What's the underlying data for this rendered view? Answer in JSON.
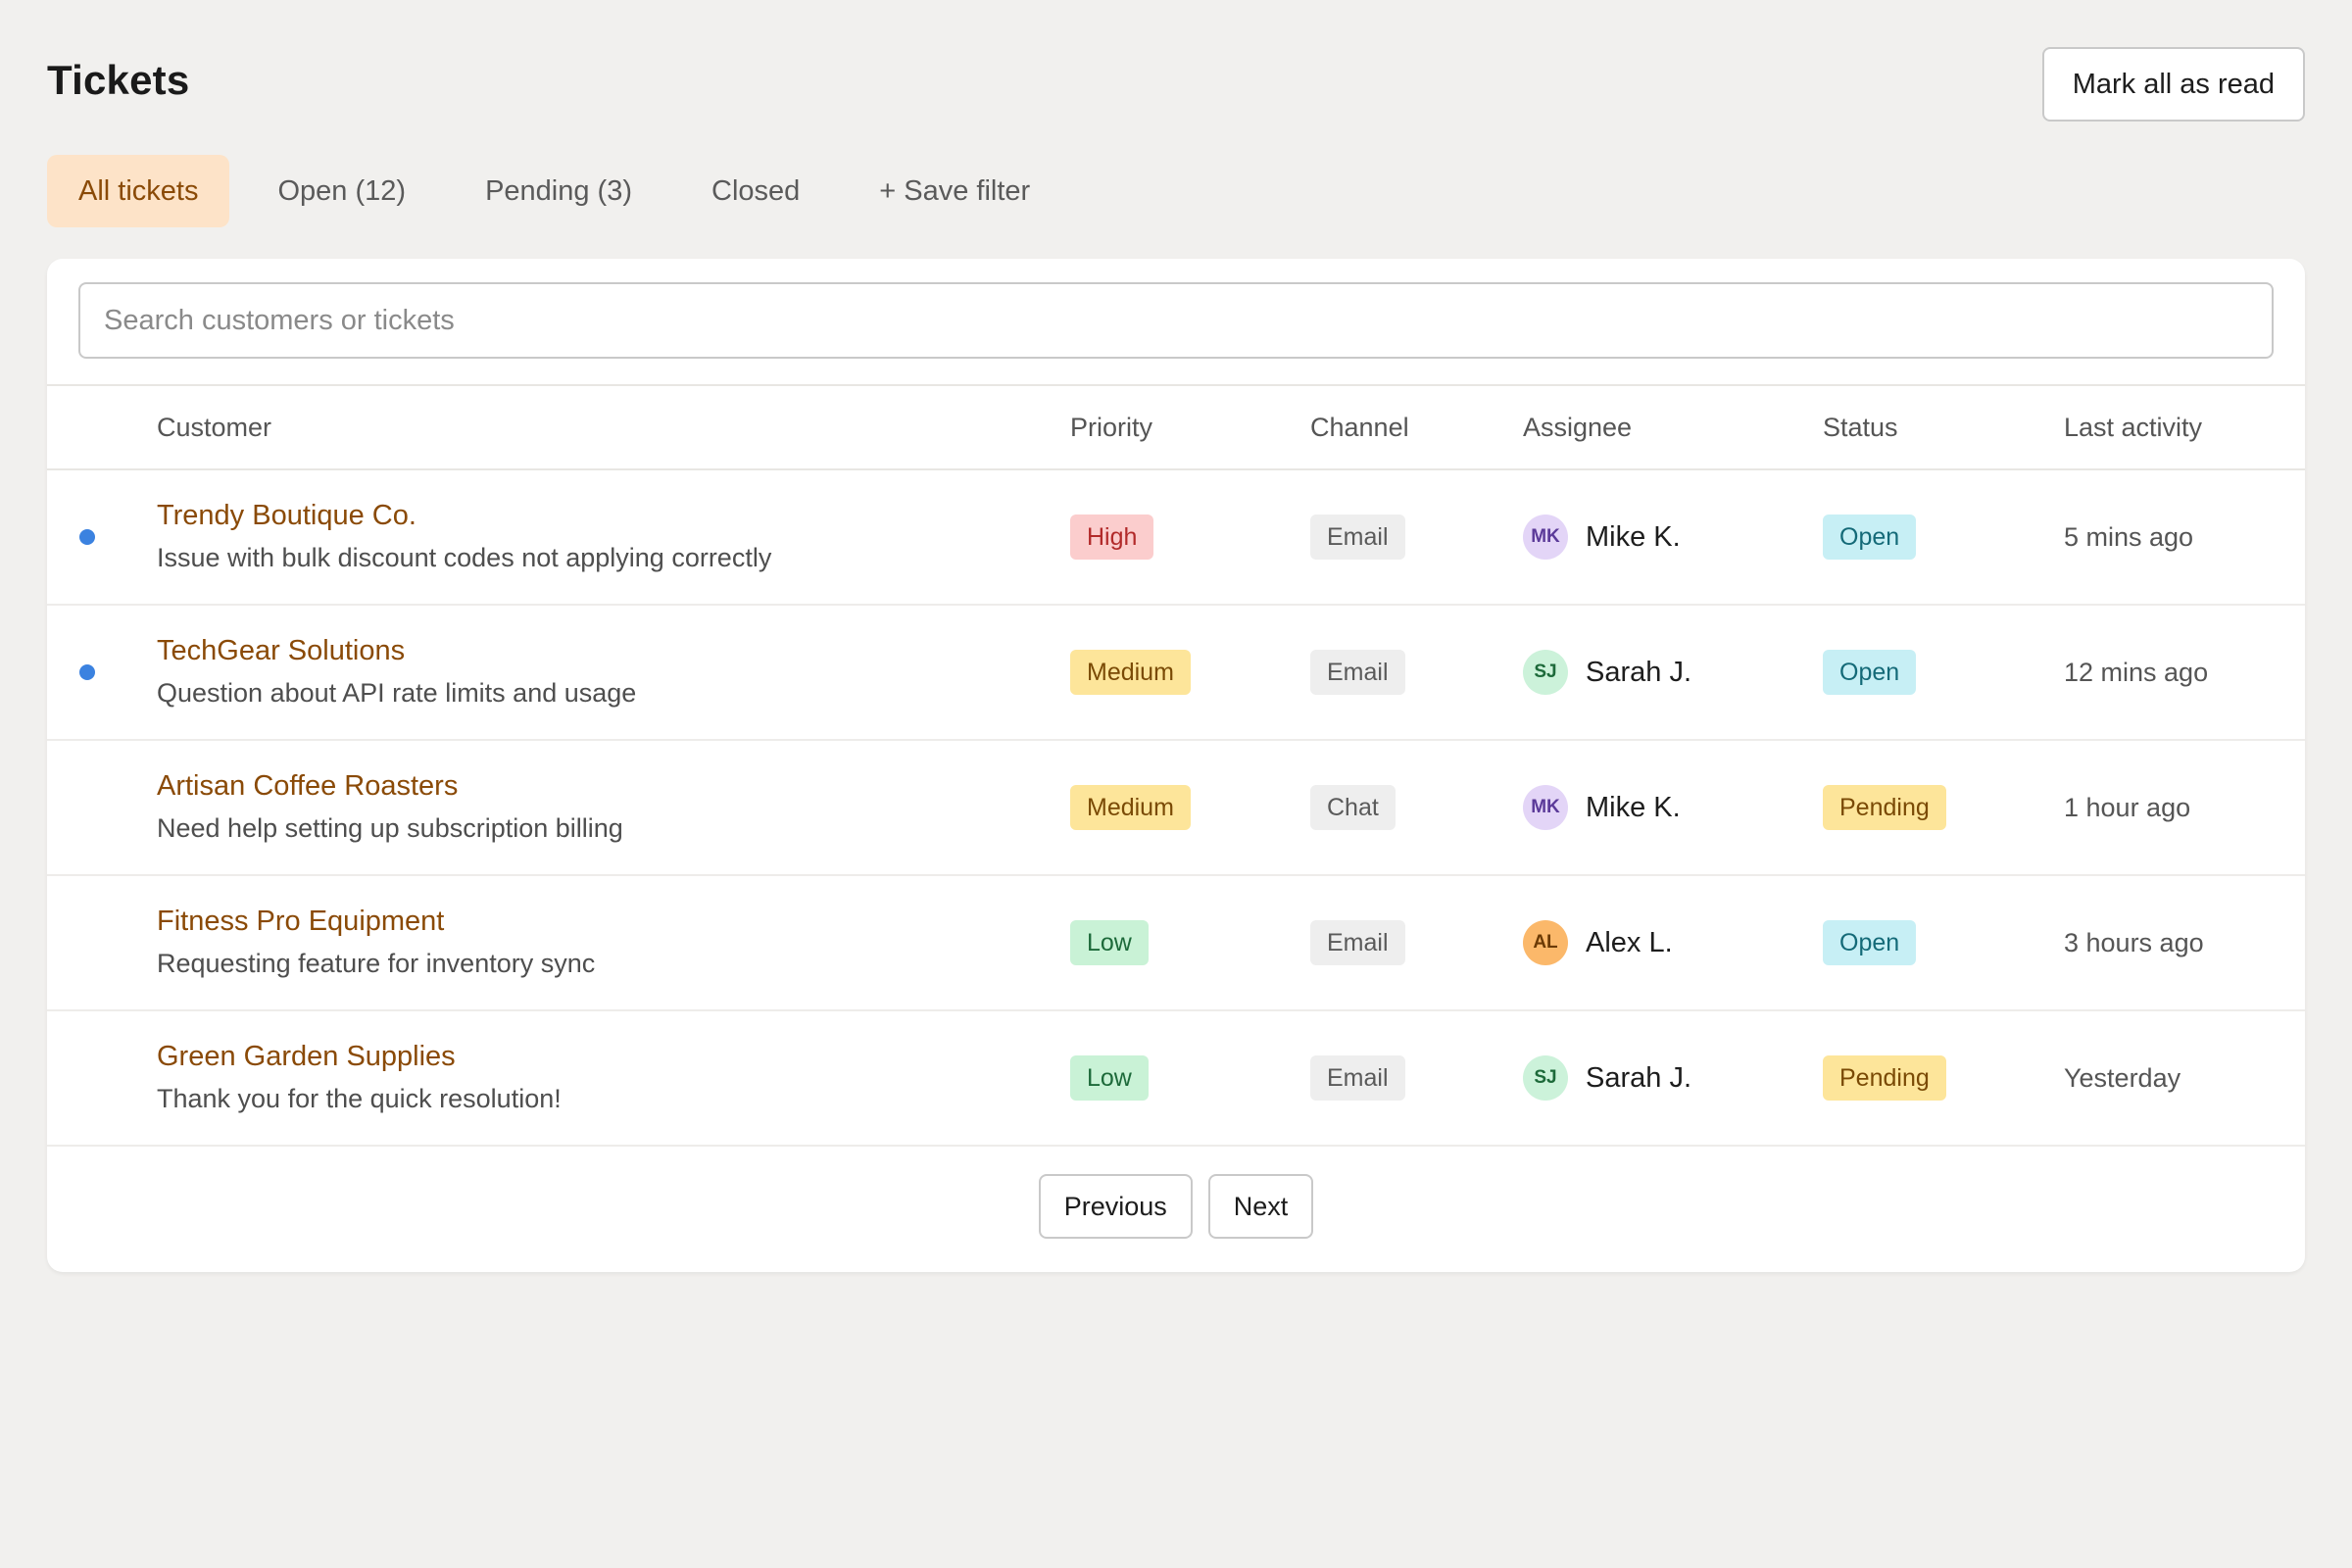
{
  "header": {
    "title": "Tickets",
    "mark_all_read_label": "Mark all as read"
  },
  "tabs": [
    {
      "label": "All tickets",
      "active": true
    },
    {
      "label": "Open (12)",
      "active": false
    },
    {
      "label": "Pending (3)",
      "active": false
    },
    {
      "label": "Closed",
      "active": false
    },
    {
      "label": "+ Save filter",
      "active": false
    }
  ],
  "search": {
    "placeholder": "Search customers or tickets",
    "value": ""
  },
  "table": {
    "columns": [
      "Customer",
      "Priority",
      "Channel",
      "Assignee",
      "Status",
      "Last activity"
    ],
    "rows": [
      {
        "unread": true,
        "customer": "Trendy Boutique Co.",
        "subject": "Issue with bulk discount codes not applying correctly",
        "priority": "High",
        "priority_level": "high",
        "channel": "Email",
        "assignee_initials": "MK",
        "assignee": "Mike K.",
        "assignee_color": {
          "bg": "#e3d5f7",
          "fg": "#5b3a99"
        },
        "status": "Open",
        "status_level": "open",
        "last_activity": "5 mins ago"
      },
      {
        "unread": true,
        "customer": "TechGear Solutions",
        "subject": "Question about API rate limits and usage",
        "priority": "Medium",
        "priority_level": "medium",
        "channel": "Email",
        "assignee_initials": "SJ",
        "assignee": "Sarah J.",
        "assignee_color": {
          "bg": "#ccf2da",
          "fg": "#1d6a3a"
        },
        "status": "Open",
        "status_level": "open",
        "last_activity": "12 mins ago"
      },
      {
        "unread": false,
        "customer": "Artisan Coffee Roasters",
        "subject": "Need help setting up subscription billing",
        "priority": "Medium",
        "priority_level": "medium",
        "channel": "Chat",
        "assignee_initials": "MK",
        "assignee": "Mike K.",
        "assignee_color": {
          "bg": "#e3d5f7",
          "fg": "#5b3a99"
        },
        "status": "Pending",
        "status_level": "pending",
        "last_activity": "1 hour ago"
      },
      {
        "unread": false,
        "customer": "Fitness Pro Equipment",
        "subject": "Requesting feature for inventory sync",
        "priority": "Low",
        "priority_level": "low",
        "channel": "Email",
        "assignee_initials": "AL",
        "assignee": "Alex L.",
        "assignee_color": {
          "bg": "#fbb86a",
          "fg": "#6b3a04"
        },
        "status": "Open",
        "status_level": "open",
        "last_activity": "3 hours ago"
      },
      {
        "unread": false,
        "customer": "Green Garden Supplies",
        "subject": "Thank you for the quick resolution!",
        "priority": "Low",
        "priority_level": "low",
        "channel": "Email",
        "assignee_initials": "SJ",
        "assignee": "Sarah J.",
        "assignee_color": {
          "bg": "#ccf2da",
          "fg": "#1d6a3a"
        },
        "status": "Pending",
        "status_level": "pending",
        "last_activity": "Yesterday"
      }
    ]
  },
  "pagination": {
    "previous_label": "Previous",
    "next_label": "Next"
  },
  "colors": {
    "accent": "#8a4a07",
    "active_tab_bg": "#fde3c8",
    "unread_dot": "#3b82e0",
    "page_bg": "#f1f0ee"
  }
}
